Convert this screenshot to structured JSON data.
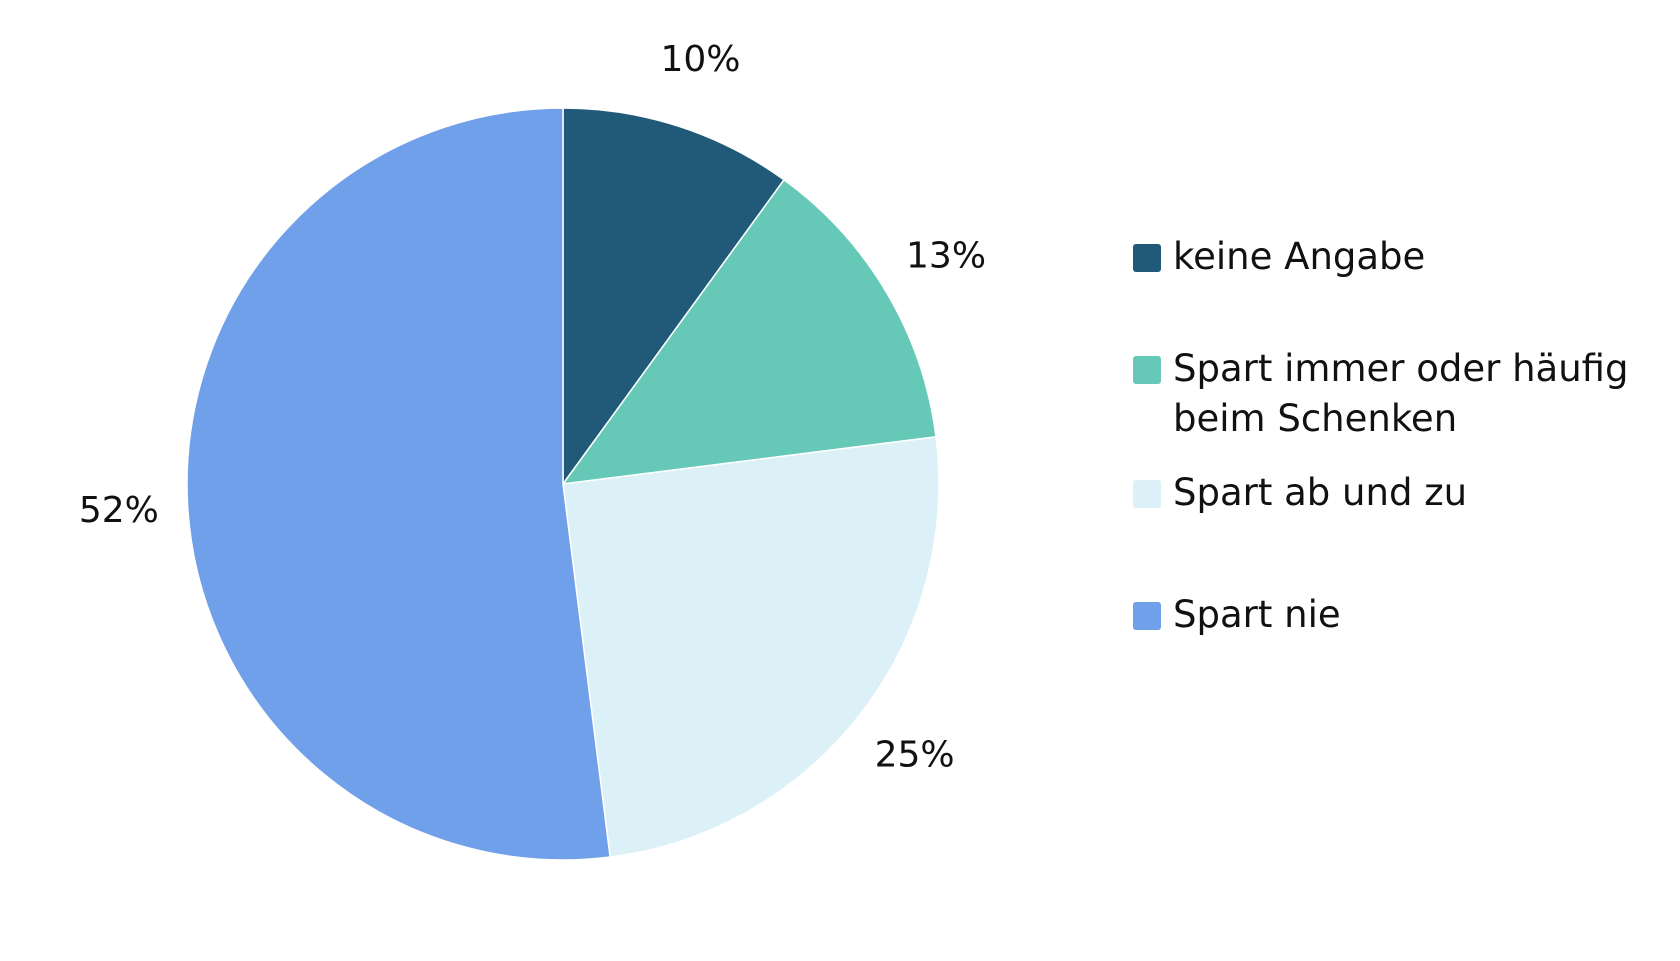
{
  "chart_data": {
    "type": "pie",
    "title": "",
    "slices": [
      {
        "label": "keine Angabe",
        "value": 10,
        "value_label": "10%",
        "color": "#215a78"
      },
      {
        "label": "Spart immer oder häufig beim Schenken",
        "value": 13,
        "value_label": "13%",
        "color": "#66c9b8"
      },
      {
        "label": "Spart ab und zu",
        "value": 25,
        "value_label": "25%",
        "color": "#dcf0f8"
      },
      {
        "label": "Spart nie",
        "value": 52,
        "value_label": "52%",
        "color": "#70a0e9"
      }
    ],
    "start_angle": "12 o'clock",
    "direction": "clockwise",
    "legend_position": "right"
  },
  "legend": {
    "items": [
      {
        "label": "keine Angabe",
        "color": "#215a78"
      },
      {
        "label": "Spart immer oder häufig beim Schenken",
        "color": "#66c9b8"
      },
      {
        "label": "Spart ab und zu",
        "color": "#dcf0f8"
      },
      {
        "label": "Spart nie",
        "color": "#70a0e9"
      }
    ]
  }
}
